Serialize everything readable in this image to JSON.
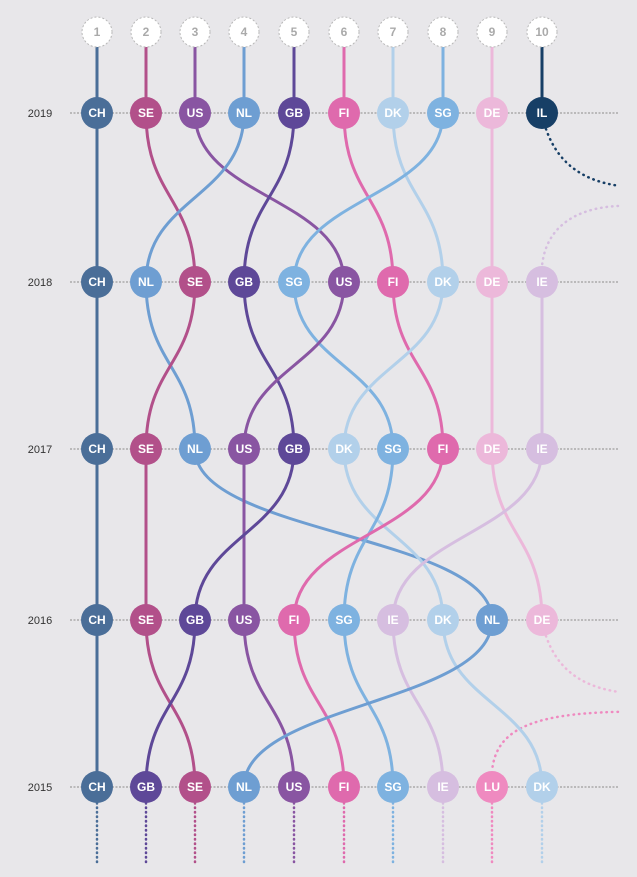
{
  "chart_data": {
    "type": "bump",
    "ranks": [
      "1",
      "2",
      "3",
      "4",
      "5",
      "6",
      "7",
      "8",
      "9",
      "10"
    ],
    "years": [
      "2019",
      "2018",
      "2017",
      "2016",
      "2015"
    ],
    "rankings": {
      "2019": [
        "CH",
        "SE",
        "US",
        "NL",
        "GB",
        "FI",
        "DK",
        "SG",
        "DE",
        "IL"
      ],
      "2018": [
        "CH",
        "NL",
        "SE",
        "GB",
        "SG",
        "US",
        "FI",
        "DK",
        "DE",
        "IE"
      ],
      "2017": [
        "CH",
        "SE",
        "NL",
        "US",
        "GB",
        "DK",
        "SG",
        "FI",
        "DE",
        "IE"
      ],
      "2016": [
        "CH",
        "SE",
        "GB",
        "US",
        "FI",
        "SG",
        "IE",
        "DK",
        "NL",
        "DE"
      ],
      "2015": [
        "CH",
        "GB",
        "SE",
        "NL",
        "US",
        "FI",
        "SG",
        "IE",
        "LU",
        "DK"
      ]
    },
    "colors": {
      "CH": "#4a6e98",
      "SE": "#b2508a",
      "US": "#8955a2",
      "NL": "#6e9ed2",
      "GB": "#5e4898",
      "FI": "#df6aad",
      "DK": "#b2d0ea",
      "SG": "#7eb2e0",
      "DE": "#ecb8da",
      "IL": "#173f66",
      "IE": "#d6bee0",
      "LU": "#ef8ac0"
    }
  }
}
